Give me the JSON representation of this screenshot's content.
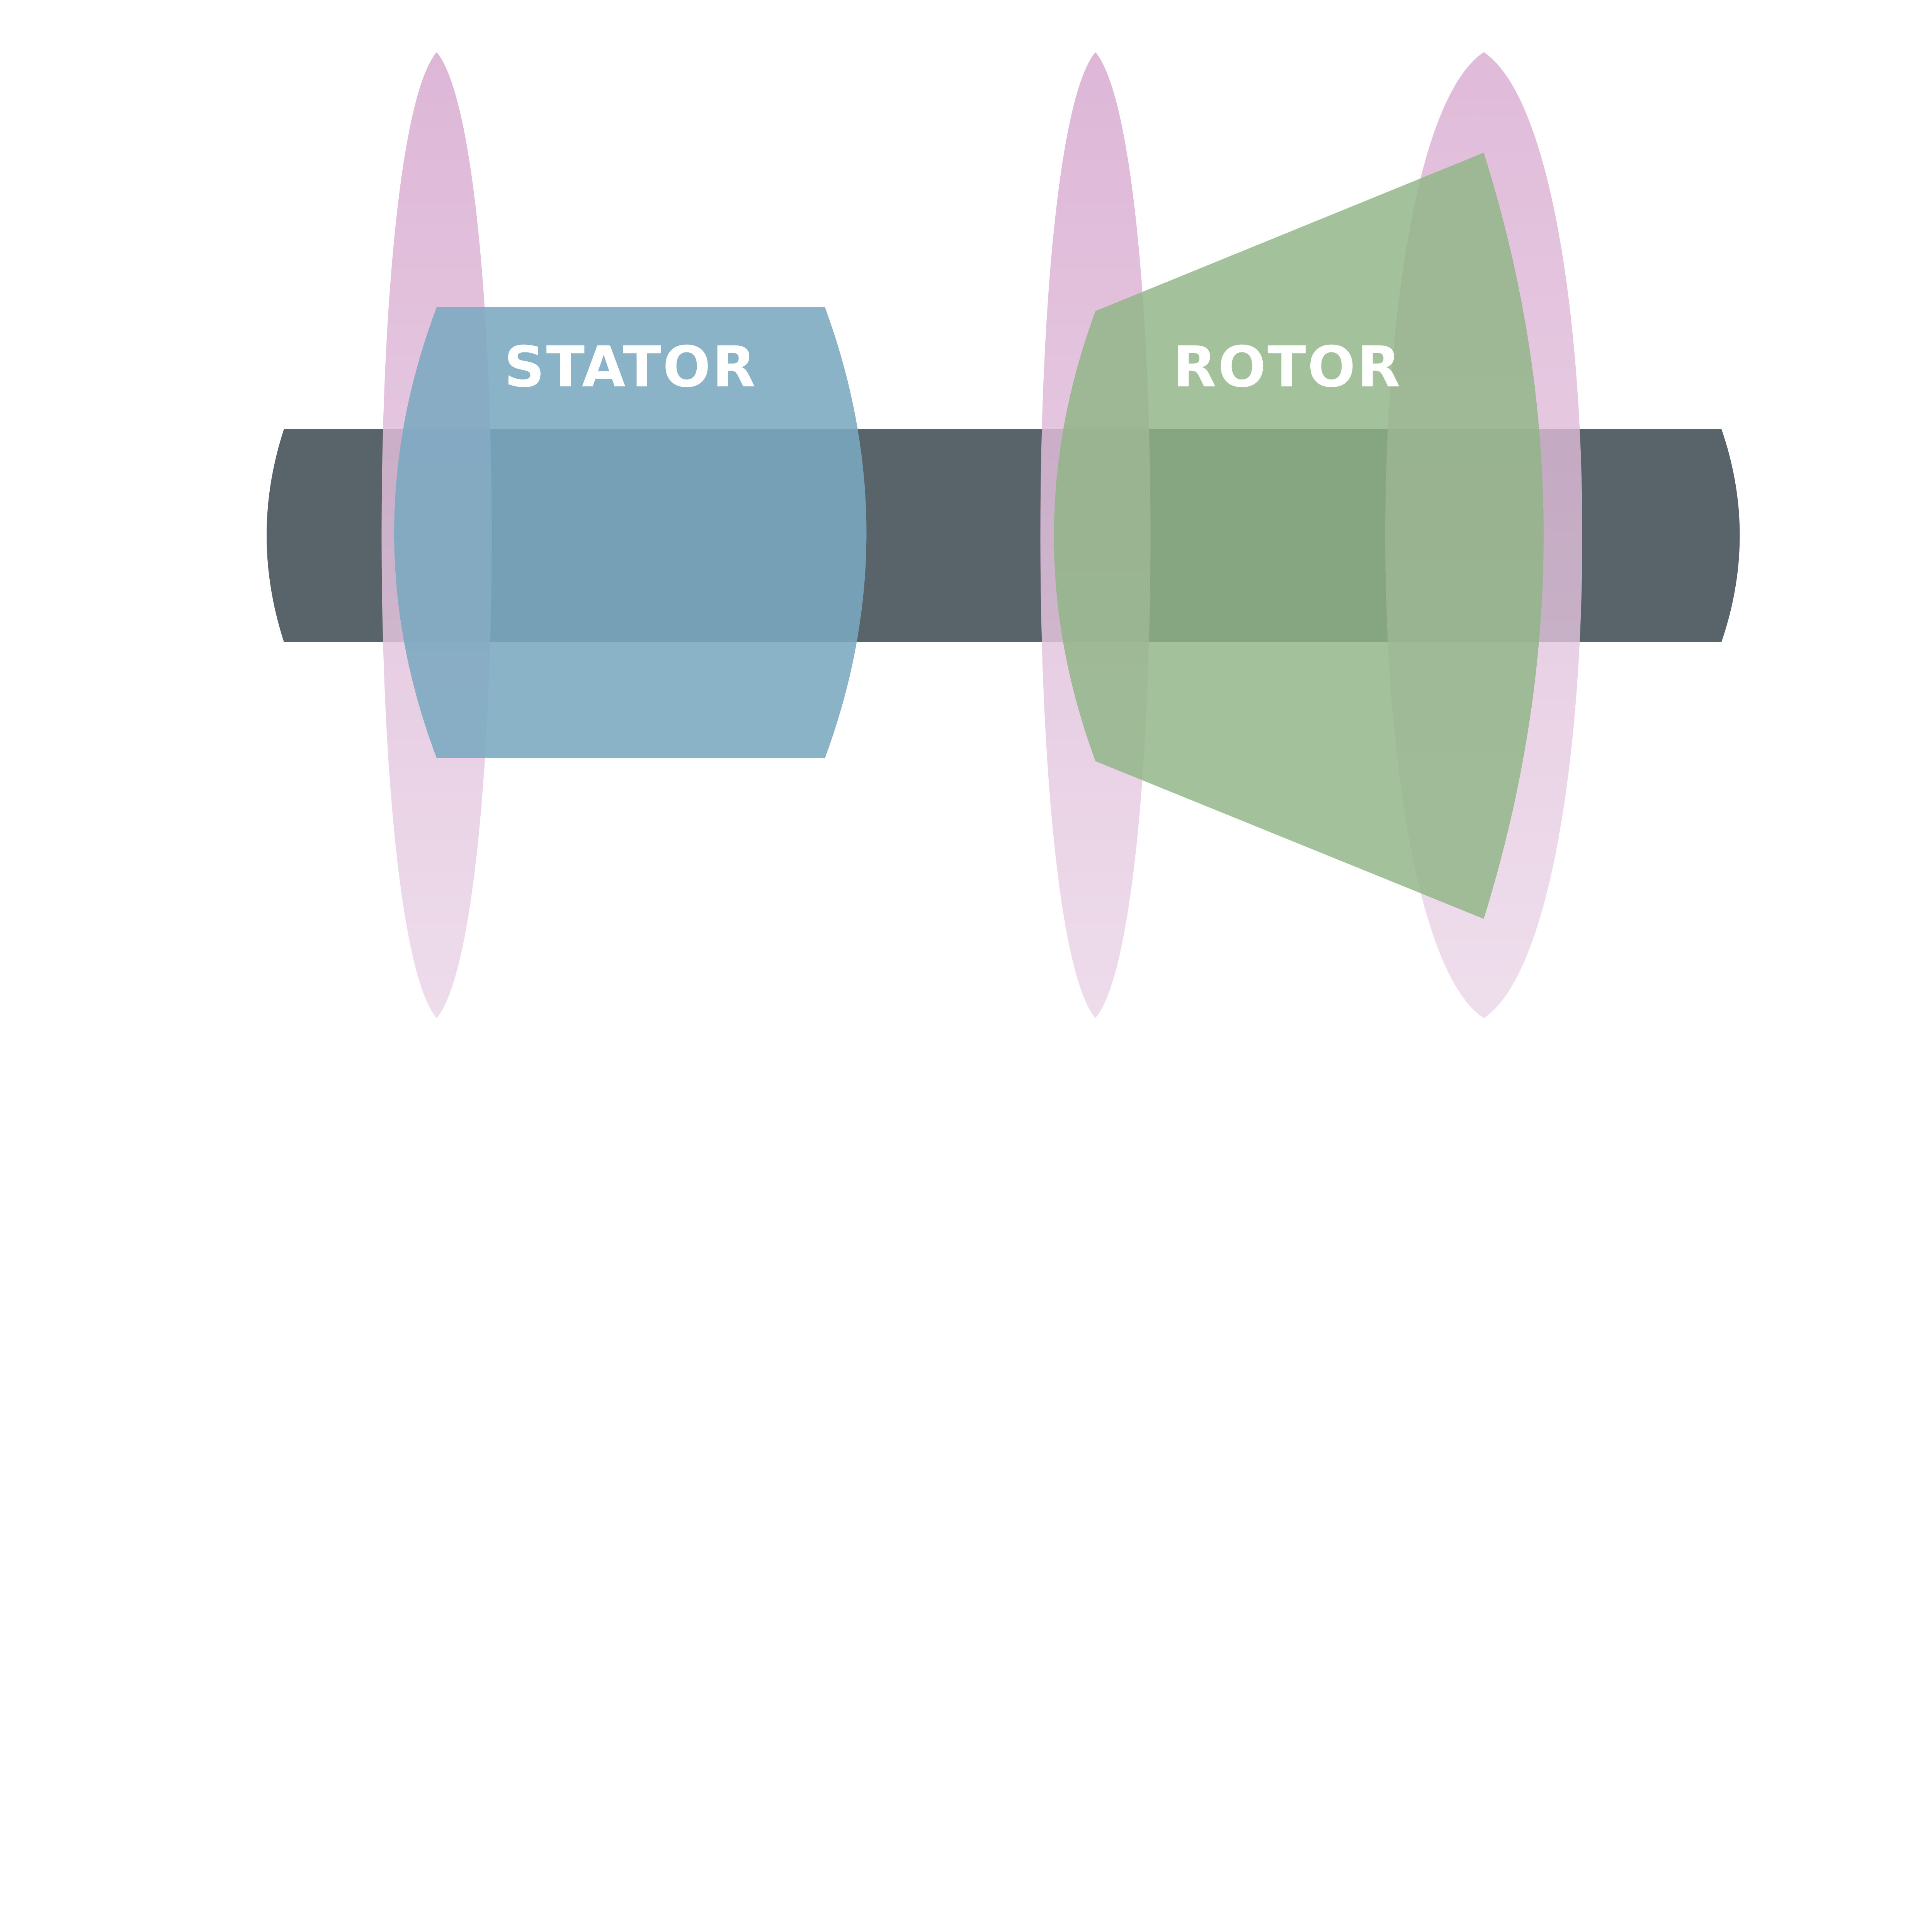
{
  "labels": {
    "stator": "STATOR",
    "rotor": "ROTOR"
  },
  "colors": {
    "shaft": "#58636A",
    "stator": "#7AA9C0",
    "rotor": "#8FB585",
    "disc_top": "#D8AAD0",
    "disc_bottom": "#EAD6E7",
    "label_text": "#FFFFFF"
  }
}
